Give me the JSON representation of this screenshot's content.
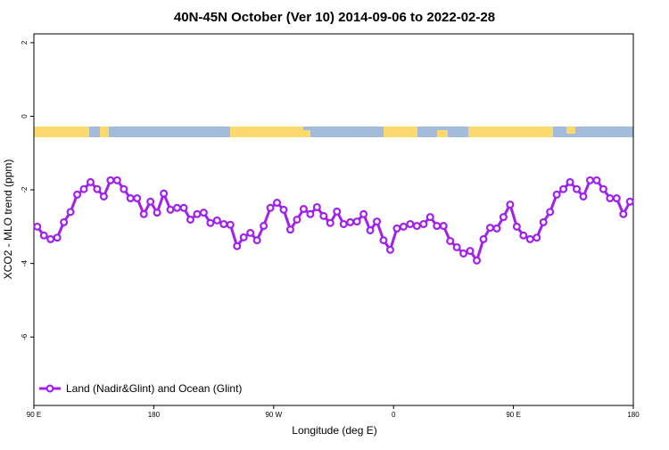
{
  "chart_data": {
    "type": "line",
    "title": "40N-45N October (Ver 10)   2014-09-06 to 2022-02-28",
    "x_label": "Longitude (deg E)",
    "y_label": "XCO2 - MLO trend (ppm)",
    "xlim": [
      90,
      540
    ],
    "ylim": [
      -7.86,
      2.24
    ],
    "xticks": [
      {
        "value": 90,
        "label": "90 E"
      },
      180,
      {
        "value": 270,
        "label": "90 W"
      },
      {
        "value": 360,
        "label": "0"
      },
      {
        "value": 450,
        "label": "90 E"
      },
      {
        "value": 540,
        "label": "180"
      }
    ],
    "yticks": [
      2,
      0,
      -2,
      -4,
      -6
    ],
    "legend": "bottom-left",
    "x": [
      92.5,
      97.5,
      102.5,
      107.5,
      112.5,
      117.5,
      122.5,
      127.5,
      132.5,
      137.5,
      142.5,
      147.5,
      152.5,
      157.5,
      162.5,
      167.5,
      172.5,
      177.5,
      182.5,
      187.5,
      192.5,
      197.5,
      202.5,
      207.5,
      212.5,
      217.5,
      222.5,
      227.5,
      232.5,
      237.5,
      242.5,
      247.5,
      252.5,
      257.5,
      262.5,
      267.5,
      272.5,
      277.5,
      282.5,
      287.5,
      292.5,
      297.5,
      302.5,
      307.5,
      312.5,
      317.5,
      322.5,
      327.5,
      332.5,
      337.5,
      342.5,
      347.5,
      352.5,
      357.5,
      362.5,
      367.5,
      372.5,
      377.5,
      382.5,
      387.5,
      392.5,
      397.5,
      402.5,
      407.5,
      412.5,
      417.5,
      422.5,
      427.5,
      432.5,
      437.5,
      442.5,
      447.5,
      452.5,
      457.5,
      462.5,
      467.5,
      472.5,
      477.5,
      482.5,
      487.5,
      492.5,
      497.5,
      502.5,
      507.5,
      512.5,
      517.5,
      522.5,
      527.5,
      532.5,
      537.5
    ],
    "series": [
      {
        "name": "Land (Nadir&Glint) and Ocean (Glint)",
        "color": "#a020f0",
        "values": [
          -3.0,
          -3.24,
          -3.34,
          -3.3,
          -2.88,
          -2.6,
          -2.13,
          -1.98,
          -1.79,
          -1.98,
          -2.18,
          -1.74,
          -1.74,
          -1.98,
          -2.23,
          -2.23,
          -2.66,
          -2.32,
          -2.62,
          -2.1,
          -2.54,
          -2.49,
          -2.49,
          -2.81,
          -2.66,
          -2.62,
          -2.9,
          -2.83,
          -2.93,
          -2.95,
          -3.53,
          -3.29,
          -3.17,
          -3.37,
          -2.98,
          -2.49,
          -2.35,
          -2.54,
          -3.08,
          -2.81,
          -2.52,
          -2.66,
          -2.47,
          -2.71,
          -2.9,
          -2.59,
          -2.93,
          -2.88,
          -2.86,
          -2.66,
          -3.1,
          -2.86,
          -3.37,
          -3.63,
          -3.05,
          -3.0,
          -2.93,
          -2.98,
          -2.93,
          -2.74,
          -2.98,
          -2.98,
          -3.39,
          -3.56,
          -3.73,
          -3.66,
          -3.92,
          -3.34,
          -3.03,
          -3.05,
          -2.74,
          -2.4,
          -3.0,
          -3.24,
          -3.34,
          -3.3,
          -2.88,
          -2.6,
          -2.13,
          -1.98,
          -1.79,
          -1.98,
          -2.18,
          -1.74,
          -1.74,
          -1.98,
          -2.23,
          -2.23,
          -2.66,
          -2.32
        ]
      }
    ]
  }
}
